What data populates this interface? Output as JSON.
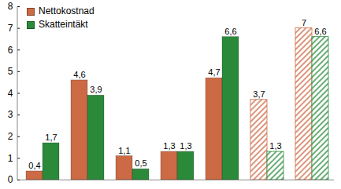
{
  "chart_data": {
    "type": "bar",
    "categories": [
      null,
      null,
      null,
      null,
      null,
      null,
      null
    ],
    "series": [
      {
        "name": "Nettokostnad",
        "color": "#cc6a45",
        "values": [
          0.4,
          4.6,
          1.1,
          1.3,
          4.7,
          3.7,
          7
        ],
        "value_labels": [
          "0,4",
          "4,6",
          "1,1",
          "1,3",
          "4,7",
          "3,7",
          "7"
        ]
      },
      {
        "name": "Skatteintäkt",
        "color": "#2a8a3a",
        "values": [
          1.7,
          3.9,
          0.5,
          1.3,
          6.6,
          1.3,
          6.6
        ],
        "value_labels": [
          "1,7",
          "3,9",
          "0,5",
          "1,3",
          "6,6",
          "1,3",
          "6,6"
        ]
      }
    ],
    "ylim": [
      0,
      8
    ],
    "yticks": [
      0,
      1,
      2,
      3,
      4,
      5,
      6,
      7,
      8
    ],
    "grid": false,
    "legend": "top-left",
    "data_labels": true
  }
}
